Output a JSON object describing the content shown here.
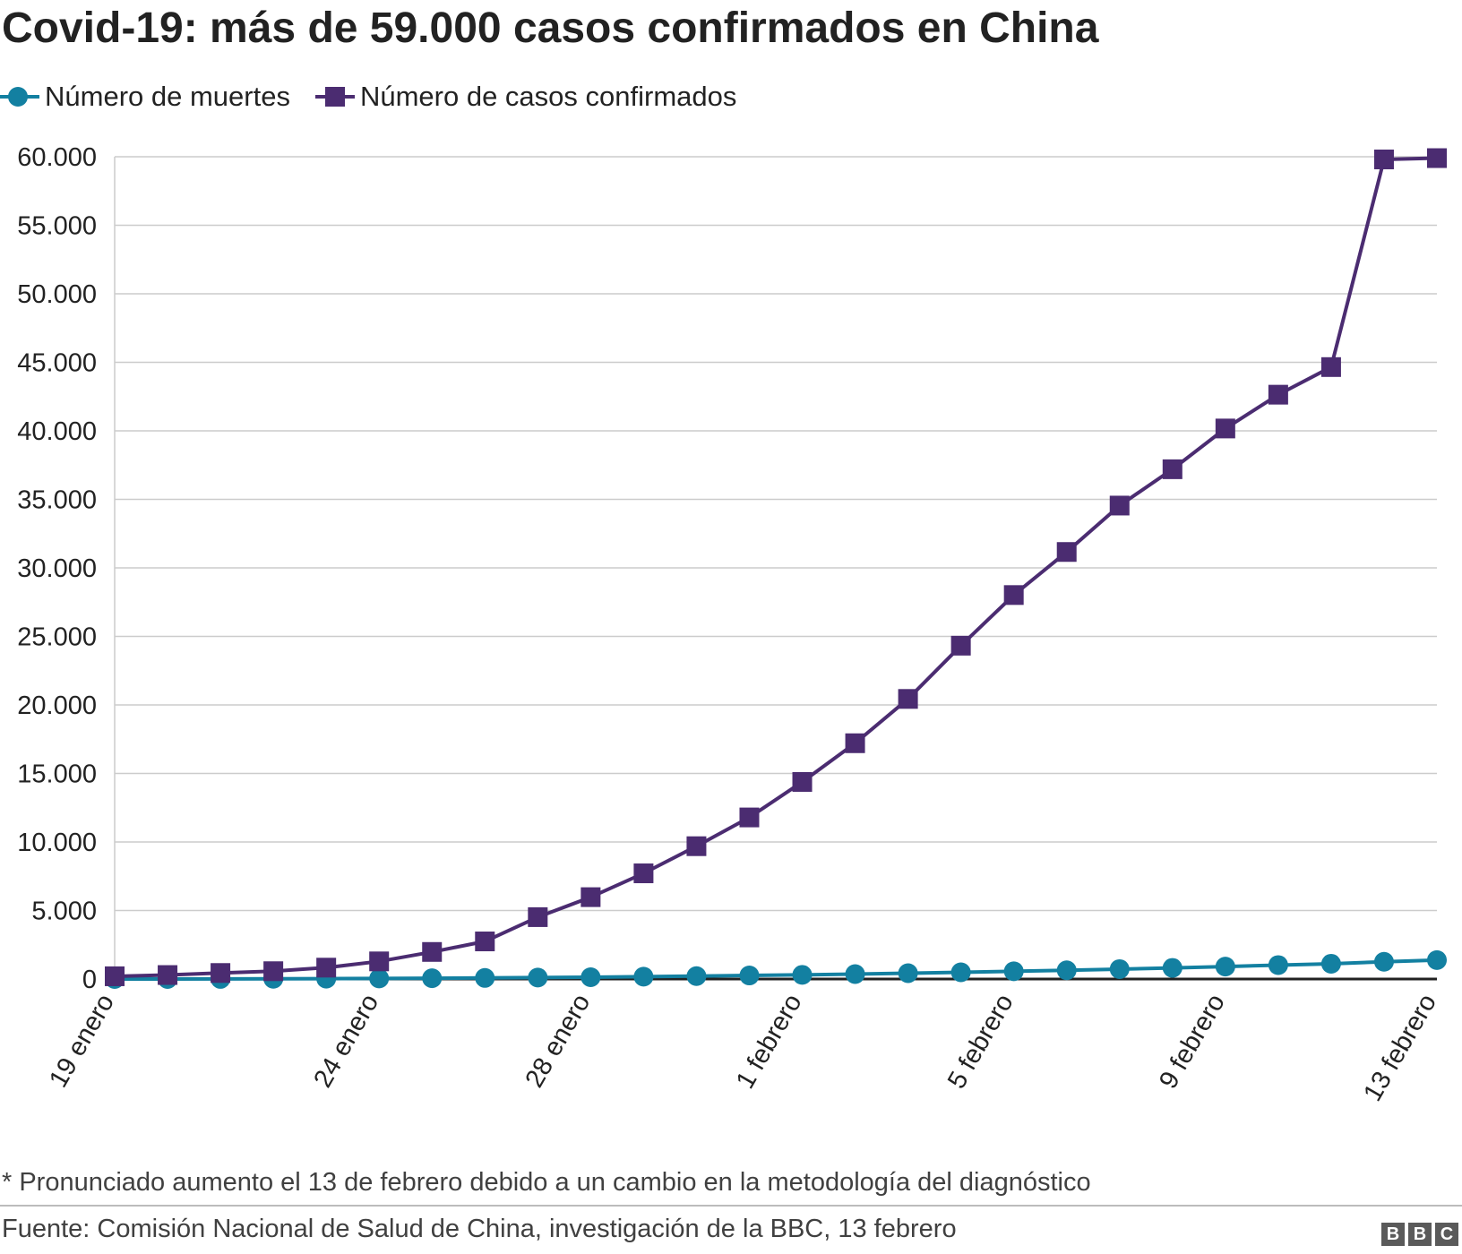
{
  "header": {
    "title": "Covid-19: más de 59.000 casos confirmados en China"
  },
  "legend": {
    "items": [
      {
        "label": "Número de muertes",
        "color": "#1380a1",
        "marker": "circle"
      },
      {
        "label": "Número de casos confirmados",
        "color": "#4b2c71",
        "marker": "square"
      }
    ]
  },
  "chart_data": {
    "type": "line",
    "title": "Covid-19: más de 59.000 casos confirmados en China",
    "xlabel": "",
    "ylabel": "",
    "ylim": [
      0,
      60000
    ],
    "yticks": [
      0,
      5000,
      10000,
      15000,
      20000,
      25000,
      30000,
      35000,
      40000,
      45000,
      50000,
      55000,
      60000
    ],
    "ytick_labels": [
      "0",
      "5.000",
      "10.000",
      "15.000",
      "20.000",
      "25.000",
      "30.000",
      "35.000",
      "40.000",
      "45.000",
      "50.000",
      "55.000",
      "60.000"
    ],
    "x": [
      "19 enero",
      "20 enero",
      "21 enero",
      "22 enero",
      "23 enero",
      "24 enero",
      "25 enero",
      "26 enero",
      "27 enero",
      "28 enero",
      "29 enero",
      "30 enero",
      "31 enero",
      "1 febrero",
      "2 febrero",
      "3 febrero",
      "4 febrero",
      "5 febrero",
      "6 febrero",
      "7 febrero",
      "8 febrero",
      "9 febrero",
      "10 febrero",
      "11 febrero",
      "12 febrero",
      "13 febrero"
    ],
    "xtick_labels_shown": [
      "19 enero",
      "24 enero",
      "28 enero",
      "1 febrero",
      "5 febrero",
      "9 febrero",
      "13 febrero"
    ],
    "series": [
      {
        "name": "Número de muertes",
        "color": "#1380a1",
        "marker": "circle",
        "values": [
          3,
          4,
          6,
          17,
          25,
          41,
          56,
          80,
          106,
          132,
          170,
          213,
          259,
          304,
          361,
          425,
          490,
          563,
          636,
          722,
          811,
          908,
          1016,
          1113,
          1259,
          1380
        ]
      },
      {
        "name": "Número de casos confirmados",
        "color": "#4b2c71",
        "marker": "square",
        "values": [
          200,
          291,
          440,
          571,
          830,
          1287,
          1975,
          2744,
          4515,
          5974,
          7711,
          9692,
          11791,
          14380,
          17205,
          20438,
          24324,
          28018,
          31161,
          34546,
          37198,
          40171,
          42638,
          44653,
          59804,
          59900
        ]
      }
    ],
    "grid": true,
    "legend_position": "top-left"
  },
  "footer": {
    "note": "* Pronunciado aumento el 13 de febrero debido a un cambio en la metodología del diagnóstico",
    "source": "Fuente: Comisión Nacional de Salud de China, investigación de la BBC, 13 febrero",
    "logo_letters": [
      "B",
      "B",
      "C"
    ]
  }
}
